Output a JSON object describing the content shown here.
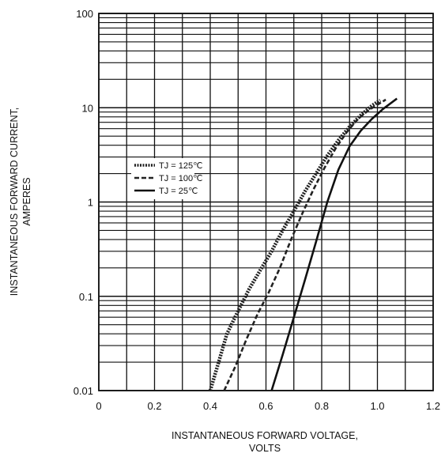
{
  "chart_data": {
    "type": "line",
    "title": "",
    "xlabel": [
      "INSTANTANEOUS FORWARD VOLTAGE,",
      "VOLTS"
    ],
    "ylabel": [
      "INSTANTANEOUS FORWARD CURRENT,",
      "AMPERES"
    ],
    "xlim": [
      0,
      1.2
    ],
    "ylim": [
      0.01,
      100
    ],
    "yscale": "log",
    "grid": true,
    "legend_position": "left-middle",
    "x_ticks": [
      {
        "value": 0,
        "label": "0"
      },
      {
        "value": 0.2,
        "label": "0.2"
      },
      {
        "value": 0.4,
        "label": "0.4"
      },
      {
        "value": 0.6,
        "label": "0.6"
      },
      {
        "value": 0.8,
        "label": "0.8"
      },
      {
        "value": 1.0,
        "label": "1.0"
      },
      {
        "value": 1.2,
        "label": "1.2"
      }
    ],
    "y_ticks": [
      {
        "value": 0.01,
        "label": "0.01"
      },
      {
        "value": 0.1,
        "label": "0.1"
      },
      {
        "value": 1,
        "label": "1"
      },
      {
        "value": 10,
        "label": "10"
      },
      {
        "value": 100,
        "label": "100"
      }
    ],
    "series": [
      {
        "name": "TJ = 125℃",
        "style": "dash-dot-dot",
        "color": "#222222",
        "x": [
          0.4,
          0.43,
          0.46,
          0.5,
          0.54,
          0.58,
          0.62,
          0.66,
          0.7,
          0.74,
          0.78,
          0.82,
          0.86,
          0.9,
          0.94,
          0.98,
          1.01
        ],
        "y": [
          0.01,
          0.02,
          0.04,
          0.07,
          0.12,
          0.19,
          0.3,
          0.5,
          0.8,
          1.3,
          2.0,
          3.1,
          4.5,
          6.3,
          8.3,
          10.5,
          12.0
        ]
      },
      {
        "name": "TJ = 100℃",
        "style": "dashed",
        "color": "#222222",
        "x": [
          0.45,
          0.49,
          0.53,
          0.57,
          0.61,
          0.65,
          0.69,
          0.73,
          0.77,
          0.81,
          0.85,
          0.89,
          0.93,
          0.97,
          1.03
        ],
        "y": [
          0.01,
          0.018,
          0.035,
          0.065,
          0.11,
          0.2,
          0.4,
          0.75,
          1.35,
          2.3,
          3.7,
          5.5,
          7.6,
          9.5,
          12.2
        ]
      },
      {
        "name": "TJ = 25℃",
        "style": "solid",
        "color": "#111111",
        "x": [
          0.62,
          0.66,
          0.7,
          0.74,
          0.78,
          0.82,
          0.86,
          0.9,
          0.94,
          0.98,
          1.02,
          1.07
        ],
        "y": [
          0.01,
          0.024,
          0.06,
          0.15,
          0.38,
          1.0,
          2.2,
          3.9,
          5.7,
          7.6,
          9.7,
          12.5
        ]
      }
    ]
  }
}
